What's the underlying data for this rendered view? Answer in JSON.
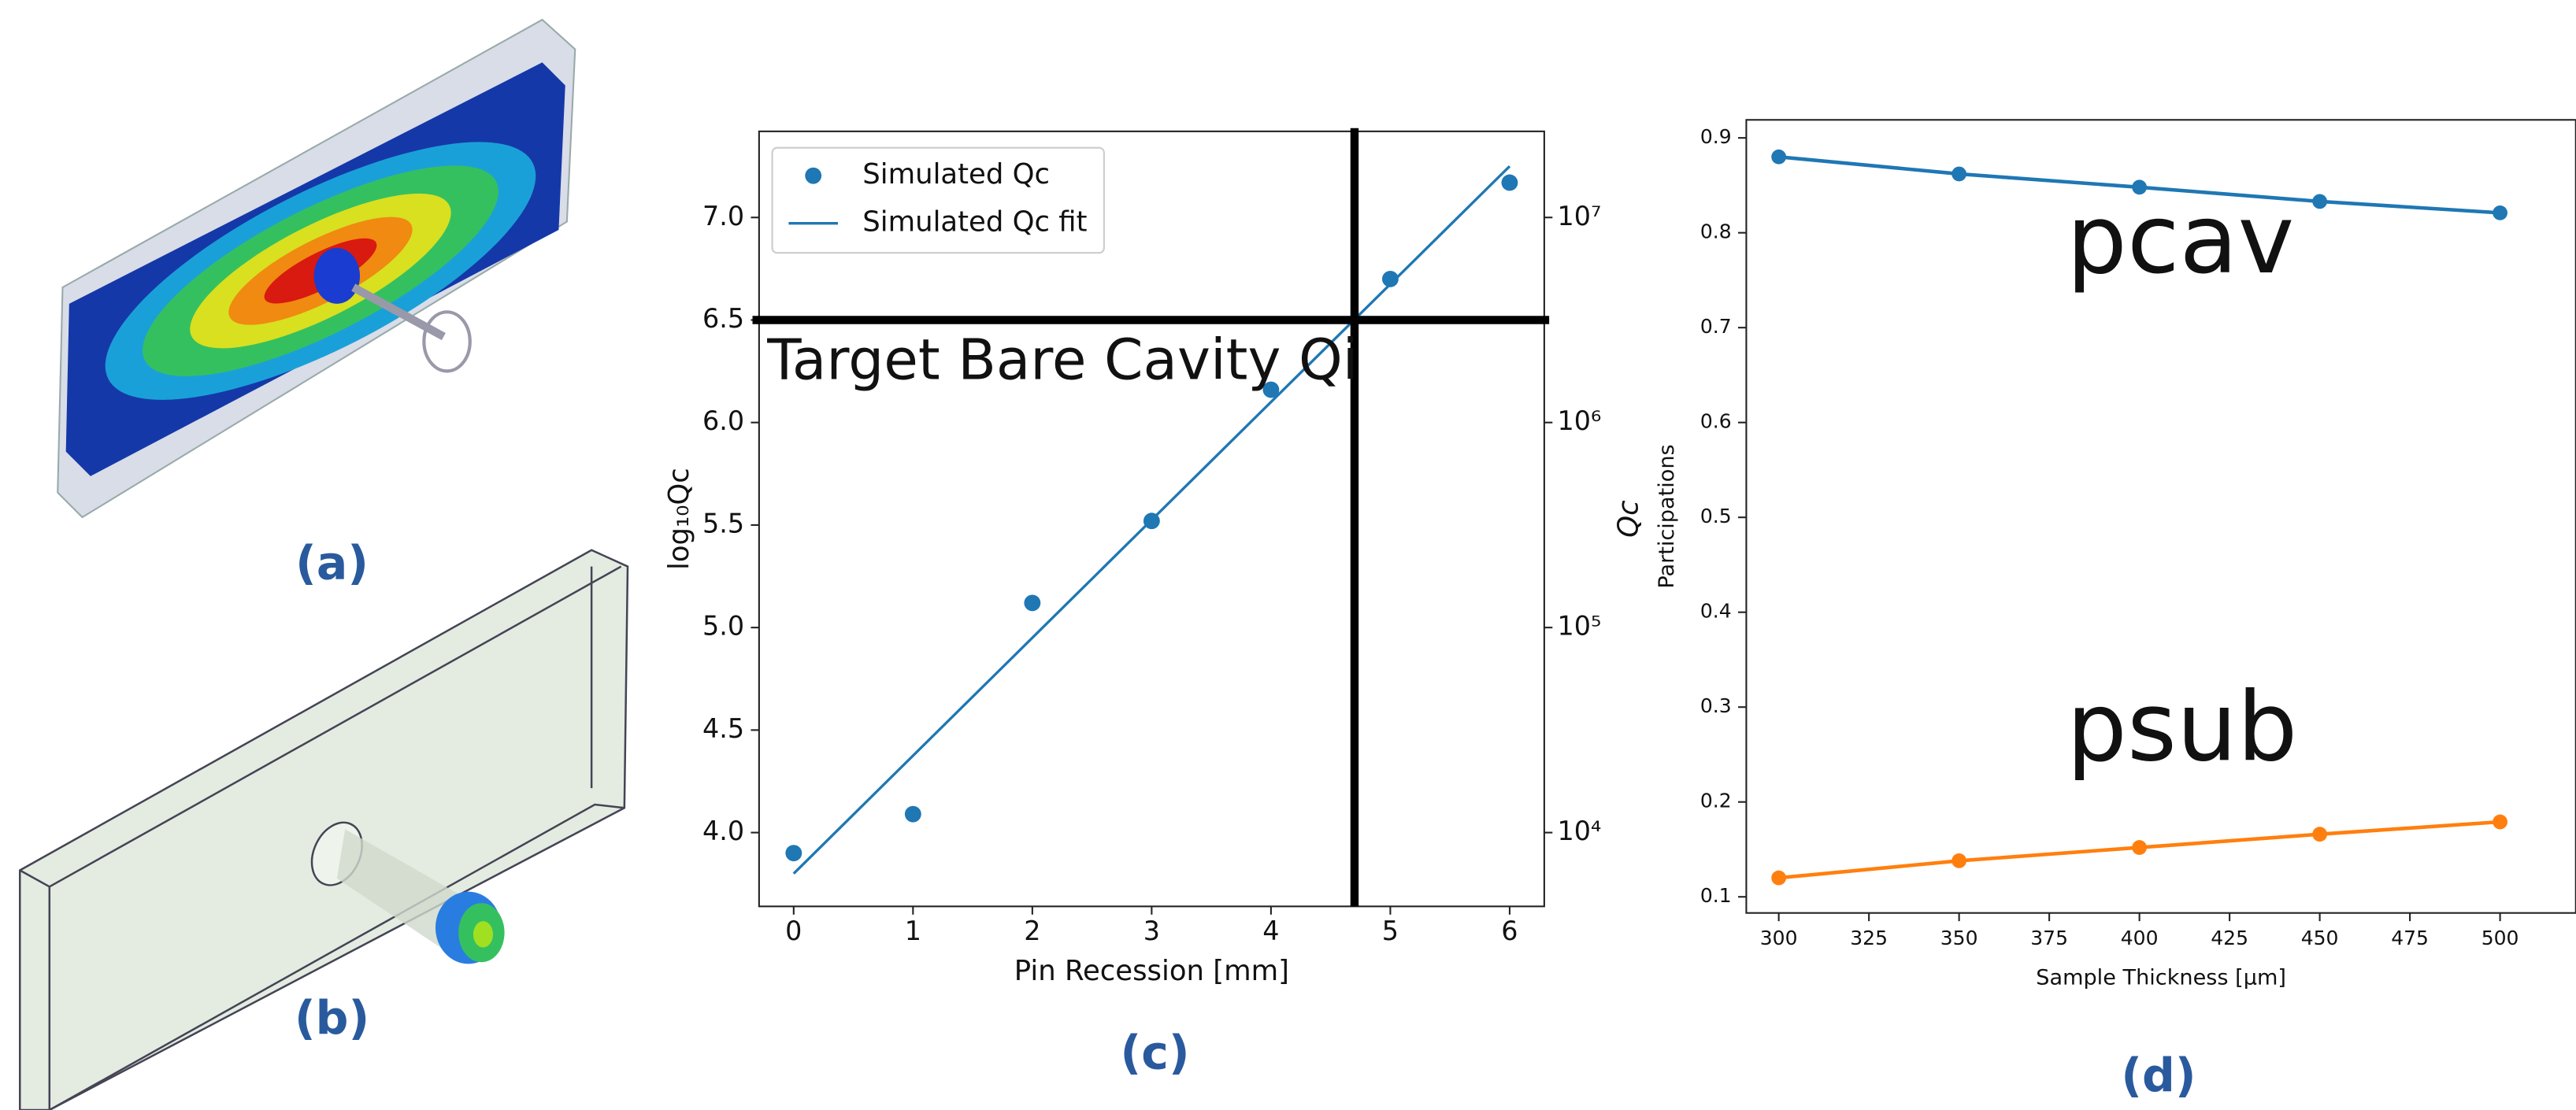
{
  "figure_labels": [
    "(a)",
    "(b)",
    "(c)",
    "(d)"
  ],
  "chart_data": [
    {
      "type": "scatter",
      "xlabel": "Pin Recession [mm]",
      "ylabel": "log₁₀Qc",
      "y2label": "Qc",
      "annotation": "Target Bare Cavity Qi",
      "xlim": [
        -0.29,
        6.29
      ],
      "ylim": [
        3.64,
        7.42
      ],
      "y2lim": [
        4365,
        26303000
      ],
      "y2log": true,
      "xticks": [
        0,
        1,
        2,
        3,
        4,
        5,
        6
      ],
      "yticks": [
        {
          "value": 4,
          "label": "4.0"
        },
        4.5,
        {
          "value": 5,
          "label": "5.0"
        },
        5.5,
        {
          "value": 6,
          "label": "6.0"
        },
        6.5,
        {
          "value": 7,
          "label": "7.0"
        }
      ],
      "y2ticks": [
        {
          "value": 10000,
          "label": "10⁴"
        },
        {
          "value": 100000,
          "label": "10⁵"
        },
        {
          "value": 1000000,
          "label": "10⁶"
        },
        {
          "value": 10000000,
          "label": "10⁷"
        }
      ],
      "hline": 6.5,
      "vline": 4.7,
      "legend": "upper left",
      "series": [
        {
          "name": "Simulated Qc",
          "color": "#1f77b4",
          "style": "markers",
          "x": [
            0,
            1,
            2,
            3,
            4,
            5,
            6
          ],
          "values": [
            3.9,
            4.09,
            5.12,
            5.52,
            6.16,
            6.7,
            7.17
          ]
        },
        {
          "name": "Simulated Qc fit",
          "color": "#1f77b4",
          "style": "line",
          "x": [
            0,
            6
          ],
          "values": [
            3.8,
            7.25
          ]
        }
      ]
    },
    {
      "type": "line",
      "xlabel": "Sample Thickness [μm]",
      "ylabel": "Participations",
      "x": [
        300,
        350,
        400,
        450,
        500
      ],
      "xlim": [
        291,
        521
      ],
      "ylim": [
        0.083,
        0.919
      ],
      "xticks": [
        300,
        325,
        350,
        375,
        400,
        425,
        450,
        475,
        500
      ],
      "yticks": [
        0.1,
        0.2,
        0.3,
        0.4,
        0.5,
        0.6,
        0.7,
        0.8,
        0.9
      ],
      "series": [
        {
          "name": "pcav",
          "color": "#1f77b4",
          "values": [
            0.88,
            0.862,
            0.848,
            0.833,
            0.821
          ]
        },
        {
          "name": "psub",
          "color": "#ff7f0e",
          "values": [
            0.12,
            0.138,
            0.152,
            0.166,
            0.179
          ]
        }
      ]
    }
  ]
}
